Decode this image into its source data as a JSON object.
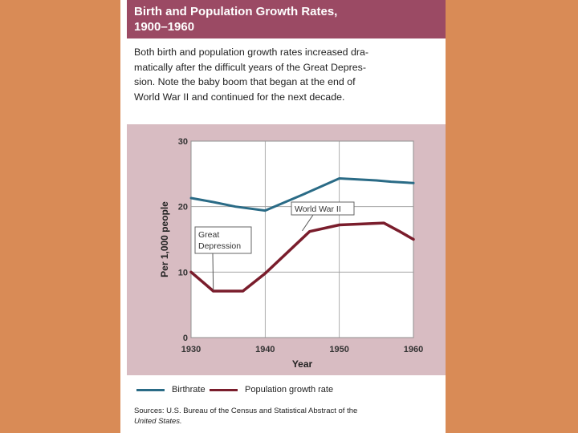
{
  "header": {
    "title_line1": "Birth and Population Growth Rates,",
    "title_line2": "1900–1960"
  },
  "description": {
    "lines": [
      "Both birth and population growth rates increased dra-",
      "matically after the difficult years of the Great Depres-",
      "sion. Note the baby boom that began at the end of",
      "World War II and continued for the next decade."
    ]
  },
  "colors": {
    "background": "#d98b56",
    "title_bar": "#9b4a64",
    "plot_region": "#d8bcc2",
    "birthrate": "#2a6b86",
    "population_growth": "#7a1d2c"
  },
  "chart_data": {
    "type": "line",
    "title": "",
    "xlabel": "Year",
    "ylabel": "Per 1,000 people",
    "xlim": [
      1930,
      1960
    ],
    "ylim": [
      0,
      30
    ],
    "xticks": [
      1930,
      1940,
      1950,
      1960
    ],
    "yticks": [
      0,
      10,
      20,
      30
    ],
    "grid": true,
    "legend_position": "bottom",
    "series": [
      {
        "name": "Birthrate",
        "color": "#2a6b86",
        "x": [
          1930,
          1933,
          1936,
          1940,
          1945,
          1950,
          1955,
          1957,
          1960
        ],
        "y": [
          21.3,
          20.7,
          20.0,
          19.4,
          21.8,
          24.3,
          24.0,
          23.8,
          23.6
        ]
      },
      {
        "name": "Population growth rate",
        "color": "#7a1d2c",
        "x": [
          1930,
          1933,
          1937,
          1940,
          1946,
          1950,
          1956,
          1958,
          1960
        ],
        "y": [
          10.0,
          7.1,
          7.1,
          9.8,
          16.2,
          17.2,
          17.5,
          16.3,
          15.0
        ]
      }
    ],
    "annotations": [
      {
        "lines": [
          "World War II"
        ],
        "x": 1945,
        "y": 16.3
      },
      {
        "lines": [
          "Great",
          "Depression"
        ],
        "x": 1933,
        "y": 7.3
      }
    ]
  },
  "sources": {
    "line1": "Sources: U.S. Bureau of the Census and Statistical Abstract of the",
    "line2": "United States."
  }
}
